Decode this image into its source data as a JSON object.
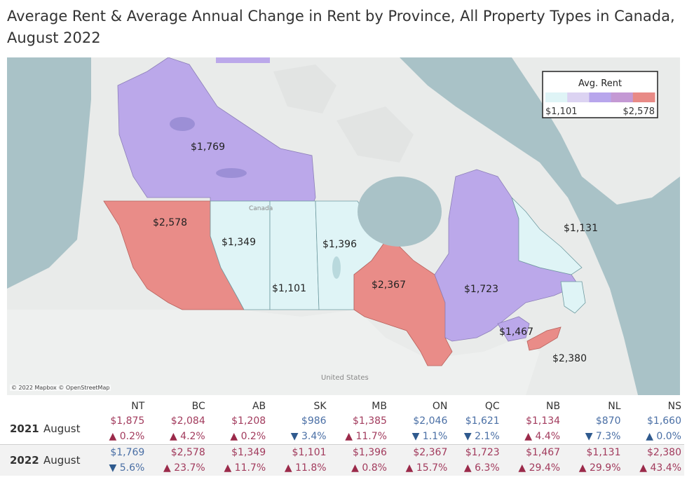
{
  "title": "Average Rent & Average Annual Change in Rent by Province, All Property Types in Canada, August 2022",
  "map": {
    "credit": "© 2022 Mapbox © OpenStreetMap",
    "place_labels": {
      "canada": "Canada",
      "united_states": "United States"
    },
    "legend": {
      "title": "Avg. Rent",
      "min": "$1,101",
      "max": "$2,578",
      "colors": [
        "#dff4f6",
        "#dcd3f2",
        "#b8a6ec",
        "#c499d4",
        "#e88a86"
      ]
    },
    "regions": {
      "NT": {
        "rent": "$1,769",
        "color": "#bba8ea"
      },
      "BC": {
        "rent": "$2,578",
        "color": "#e98c88"
      },
      "AB": {
        "rent": "$1,349",
        "color": "#dff4f6"
      },
      "SK": {
        "rent": "$1,101",
        "color": "#dff4f6"
      },
      "MB": {
        "rent": "$1,396",
        "color": "#dff4f6"
      },
      "ON": {
        "rent": "$2,367",
        "color": "#e98c88"
      },
      "QC": {
        "rent": "$1,723",
        "color": "#bba8ea"
      },
      "NB": {
        "rent": "$1,467",
        "color": "#bba8ea"
      },
      "NL": {
        "rent": "$1,131",
        "color": "#dff4f6"
      },
      "NS": {
        "rent": "$2,380",
        "color": "#e98c88"
      }
    }
  },
  "table": {
    "columns": [
      "NT",
      "BC",
      "AB",
      "SK",
      "MB",
      "ON",
      "QC",
      "NB",
      "NL",
      "NS"
    ],
    "rows": [
      {
        "year": "2021",
        "month": "August",
        "cells": [
          {
            "rent": "$1,875",
            "dir": "up",
            "change": "0.2%"
          },
          {
            "rent": "$2,084",
            "dir": "up",
            "change": "4.2%"
          },
          {
            "rent": "$1,208",
            "dir": "up",
            "change": "0.2%"
          },
          {
            "rent": "$986",
            "dir": "down",
            "change": "3.4%"
          },
          {
            "rent": "$1,385",
            "dir": "up",
            "change": "11.7%"
          },
          {
            "rent": "$2,046",
            "dir": "down",
            "change": "1.1%"
          },
          {
            "rent": "$1,621",
            "dir": "down",
            "change": "2.1%"
          },
          {
            "rent": "$1,134",
            "dir": "up",
            "change": "4.4%"
          },
          {
            "rent": "$870",
            "dir": "down",
            "change": "7.3%"
          },
          {
            "rent": "$1,660",
            "dir": "flat",
            "change": "0.0%"
          }
        ]
      },
      {
        "year": "2022",
        "month": "August",
        "cells": [
          {
            "rent": "$1,769",
            "dir": "down",
            "change": "5.6%"
          },
          {
            "rent": "$2,578",
            "dir": "up",
            "change": "23.7%"
          },
          {
            "rent": "$1,349",
            "dir": "up",
            "change": "11.7%"
          },
          {
            "rent": "$1,101",
            "dir": "up",
            "change": "11.8%"
          },
          {
            "rent": "$1,396",
            "dir": "up",
            "change": "0.8%"
          },
          {
            "rent": "$2,367",
            "dir": "up",
            "change": "15.7%"
          },
          {
            "rent": "$1,723",
            "dir": "up",
            "change": "6.3%"
          },
          {
            "rent": "$1,467",
            "dir": "up",
            "change": "29.4%"
          },
          {
            "rent": "$1,131",
            "dir": "up",
            "change": "29.9%"
          },
          {
            "rent": "$2,380",
            "dir": "up",
            "change": "43.4%"
          }
        ]
      }
    ]
  }
}
